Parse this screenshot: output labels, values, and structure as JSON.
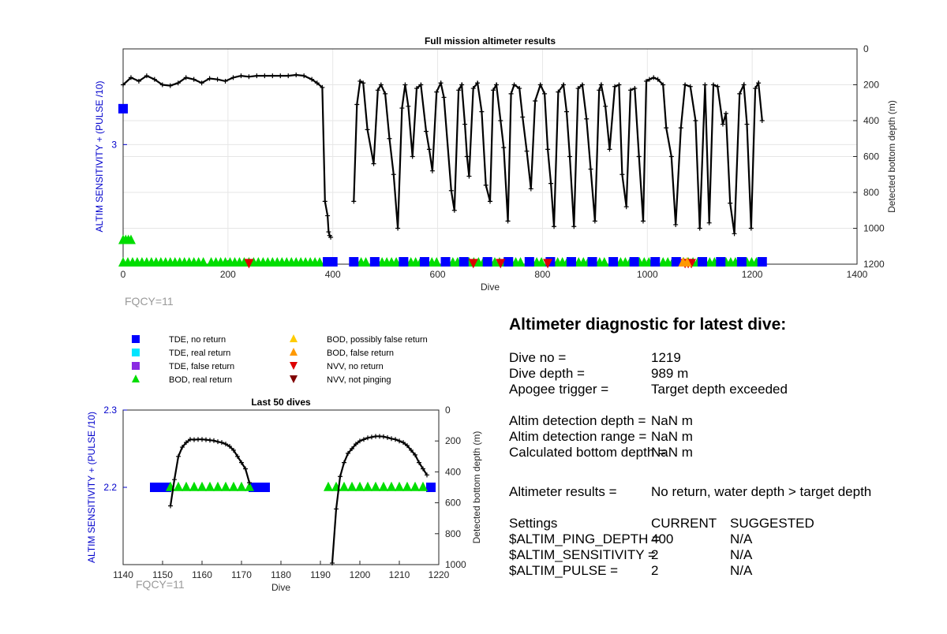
{
  "chart_data": [
    {
      "type": "scatter",
      "title": "Full mission altimeter results",
      "xlabel": "Dive",
      "ylabel_left": "ALTIM SENSITIVITY + (PULSE /10)",
      "ylabel_right": "Detected bottom depth (m)",
      "xlim": [
        0,
        1400
      ],
      "xticks": [
        "0",
        "200",
        "400",
        "600",
        "800",
        "1000",
        "1200",
        "1400"
      ],
      "ylim_left": [
        2.0,
        3.8
      ],
      "yticks_left": [
        "3"
      ],
      "ylim_right_reversed": [
        0,
        1200
      ],
      "yticks_right": [
        "0",
        "200",
        "400",
        "600",
        "800",
        "1000",
        "1200"
      ],
      "grid": true,
      "annotation": "FQCY=11",
      "bottom_depth_series": {
        "name": "Detected bottom depth",
        "x": [
          0,
          15,
          30,
          45,
          60,
          75,
          90,
          105,
          120,
          135,
          150,
          165,
          180,
          195,
          210,
          225,
          240,
          255,
          270,
          285,
          300,
          315,
          330,
          345,
          360,
          370,
          380,
          385,
          390,
          392,
          394,
          396,
          440,
          446,
          452,
          458,
          466,
          478,
          486,
          492,
          500,
          508,
          516,
          524,
          532,
          538,
          544,
          552,
          560,
          568,
          578,
          584,
          590,
          598,
          606,
          612,
          626,
          632,
          640,
          646,
          652,
          656,
          660,
          668,
          676,
          684,
          692,
          700,
          706,
          712,
          720,
          726,
          734,
          740,
          746,
          756,
          762,
          770,
          778,
          786,
          796,
          804,
          810,
          816,
          822,
          830,
          840,
          846,
          852,
          860,
          868,
          876,
          884,
          892,
          900,
          908,
          912,
          920,
          928,
          938,
          946,
          952,
          960,
          968,
          976,
          984,
          992,
          998,
          1004,
          1012,
          1020,
          1030,
          1036,
          1046,
          1054,
          1064,
          1072,
          1082,
          1092,
          1100,
          1110,
          1118,
          1126,
          1134,
          1144,
          1150,
          1158,
          1166,
          1176,
          1184,
          1190,
          1198,
          1206,
          1212,
          1219
        ],
        "y": [
          200,
          160,
          180,
          150,
          170,
          200,
          205,
          190,
          160,
          170,
          190,
          165,
          170,
          180,
          160,
          150,
          155,
          150,
          150,
          150,
          150,
          150,
          145,
          150,
          170,
          190,
          215,
          850,
          930,
          1020,
          1040,
          1050,
          850,
          310,
          180,
          190,
          450,
          640,
          230,
          200,
          250,
          500,
          700,
          1000,
          330,
          200,
          320,
          600,
          220,
          200,
          460,
          560,
          680,
          240,
          190,
          270,
          790,
          900,
          230,
          200,
          420,
          600,
          710,
          220,
          190,
          350,
          760,
          850,
          230,
          200,
          400,
          550,
          960,
          250,
          200,
          220,
          380,
          570,
          780,
          290,
          200,
          250,
          560,
          750,
          990,
          240,
          200,
          350,
          600,
          990,
          220,
          200,
          390,
          670,
          960,
          230,
          200,
          320,
          560,
          210,
          200,
          700,
          880,
          230,
          220,
          600,
          960,
          180,
          170,
          160,
          170,
          200,
          440,
          600,
          980,
          440,
          200,
          210,
          400,
          1000,
          200,
          970,
          200,
          210,
          420,
          360,
          860,
          1030,
          250,
          200,
          420,
          1000,
          220,
          190,
          400
        ],
        "color": "#000000"
      },
      "markers": [
        {
          "symbol": "square",
          "color": "#0000ff",
          "x": [
            0
          ],
          "y": [
            3.3
          ]
        },
        {
          "symbol": "triangle-up",
          "color": "#00dd00",
          "x": [
            0,
            5,
            10,
            15
          ],
          "y": [
            2.2,
            2.2,
            2.2,
            2.2
          ]
        },
        {
          "symbol": "triangle-up",
          "color": "#00dd00",
          "band_y": 2.0,
          "ranges": [
            [
              0,
              160
            ],
            [
              168,
              380
            ],
            [
              445,
              470
            ],
            [
              485,
              530
            ],
            [
              540,
              570
            ],
            [
              580,
              605
            ],
            [
              620,
              640
            ],
            [
              660,
              690
            ],
            [
              700,
              730
            ],
            [
              740,
              760
            ],
            [
              780,
              800
            ],
            [
              820,
              850
            ],
            [
              860,
              890
            ],
            [
              900,
              920
            ],
            [
              940,
              970
            ],
            [
              985,
              1010
            ],
            [
              1030,
              1050
            ],
            [
              1060,
              1100
            ],
            [
              1110,
              1130
            ],
            [
              1150,
              1170
            ],
            [
              1190,
              1215
            ]
          ]
        },
        {
          "symbol": "square",
          "color": "#0000ff",
          "band_y": 2.0,
          "x": [
            390,
            400,
            440,
            480,
            535,
            575,
            615,
            650,
            695,
            735,
            775,
            815,
            855,
            895,
            935,
            975,
            1015,
            1055,
            1105,
            1140,
            1180,
            1219
          ]
        },
        {
          "symbol": "triangle-down",
          "color": "#dd0000",
          "band_y": 2.0,
          "x": [
            240,
            668,
            720,
            810,
            1072,
            1078,
            1084
          ]
        },
        {
          "symbol": "triangle-up",
          "color": "#ff9900",
          "band_y": 2.0,
          "x": [
            1068,
            1076
          ]
        }
      ]
    },
    {
      "type": "scatter",
      "title": "Last 50 dives",
      "xlabel": "Dive",
      "ylabel_left": "ALTIM SENSITIVITY + (PULSE /10)",
      "ylabel_right": "Detected bottom depth (m)",
      "xlim": [
        1140,
        1220
      ],
      "xticks": [
        "1140",
        "1150",
        "1160",
        "1170",
        "1180",
        "1190",
        "1200",
        "1210",
        "1220"
      ],
      "ylim_left": [
        2.1,
        2.3
      ],
      "yticks_left": [
        "2.2",
        "2.3"
      ],
      "ylim_right_reversed": [
        0,
        1000
      ],
      "yticks_right": [
        "0",
        "200",
        "400",
        "600",
        "800",
        "1000"
      ],
      "annotation": "FQCY=11",
      "bottom_depth_series": {
        "name": "Detected bottom depth",
        "x": [
          1152,
          1153,
          1154,
          1155,
          1156,
          1157,
          1158,
          1159,
          1160,
          1161,
          1162,
          1163,
          1164,
          1165,
          1166,
          1167,
          1168,
          1169,
          1170,
          1171,
          1172,
          1193,
          1194,
          1195,
          1196,
          1197,
          1198,
          1199,
          1200,
          1201,
          1202,
          1203,
          1204,
          1205,
          1206,
          1207,
          1208,
          1209,
          1210,
          1211,
          1212,
          1213,
          1214,
          1215,
          1216,
          1217
        ],
        "y": [
          620,
          450,
          300,
          240,
          210,
          190,
          192,
          190,
          190,
          192,
          195,
          198,
          205,
          210,
          220,
          235,
          260,
          300,
          340,
          380,
          470,
          990,
          640,
          430,
          340,
          280,
          250,
          220,
          200,
          190,
          180,
          175,
          170,
          170,
          172,
          178,
          185,
          190,
          200,
          210,
          230,
          260,
          290,
          340,
          380,
          420
        ],
        "color": "#000000"
      },
      "markers": [
        {
          "symbol": "square",
          "color": "#0000ff",
          "x": [
            1148,
            1149,
            1150,
            1151,
            1173,
            1174,
            1175,
            1176,
            1218
          ],
          "y": [
            2.2,
            2.2,
            2.2,
            2.2,
            2.2,
            2.2,
            2.2,
            2.2,
            2.2
          ]
        },
        {
          "symbol": "triangle-up",
          "color": "#00dd00",
          "x": [
            1152,
            1154,
            1156,
            1158,
            1160,
            1162,
            1164,
            1166,
            1168,
            1170,
            1172,
            1192,
            1194,
            1196,
            1198,
            1200,
            1202,
            1204,
            1206,
            1208,
            1210,
            1212,
            1214,
            1216
          ],
          "y": [
            2.2,
            2.2,
            2.2,
            2.2,
            2.2,
            2.2,
            2.2,
            2.2,
            2.2,
            2.2,
            2.2,
            2.2,
            2.2,
            2.2,
            2.2,
            2.2,
            2.2,
            2.2,
            2.2,
            2.2,
            2.2,
            2.2,
            2.2,
            2.2
          ]
        }
      ]
    }
  ],
  "legend": [
    {
      "label": "TDE, no return",
      "symbol": "square",
      "color": "#0000ff"
    },
    {
      "label": "TDE, real return",
      "symbol": "square",
      "color": "#00e5ff"
    },
    {
      "label": "TDE, false return",
      "symbol": "square",
      "color": "#8a2be2"
    },
    {
      "label": "BOD, real return",
      "symbol": "triangle-up",
      "color": "#00dd00"
    },
    {
      "label": "BOD, possibly false return",
      "symbol": "triangle-up",
      "color": "#ffcc00"
    },
    {
      "label": "BOD, false return",
      "symbol": "triangle-up",
      "color": "#ff9900"
    },
    {
      "label": "NVV, no return",
      "symbol": "triangle-down",
      "color": "#dd0000"
    },
    {
      "label": "NVV, not pinging",
      "symbol": "triangle-down",
      "color": "#800000"
    }
  ],
  "diagnostic": {
    "title": "Altimeter diagnostic for latest dive:",
    "dive_no_label": "Dive no =",
    "dive_no_value": "1219",
    "dive_depth_label": "Dive depth =",
    "dive_depth_value": "989 m",
    "apogee_label": "Apogee trigger =",
    "apogee_value": "Target depth exceeded",
    "det_depth_label": "Altim detection depth =",
    "det_depth_value": "NaN m",
    "det_range_label": "Altim detection range =",
    "det_range_value": "NaN m",
    "calc_bottom_label": "Calculated bottom depth =",
    "calc_bottom_value": "NaN m",
    "results_label": "Altimeter results =",
    "results_value": "No return, water depth > target depth",
    "settings_label": "Settings",
    "current_label": "CURRENT",
    "suggested_label": "SUGGESTED",
    "ping_depth_label": "$ALTIM_PING_DEPTH =",
    "ping_depth_current": "400",
    "ping_depth_suggested": "N/A",
    "sensitivity_label": "$ALTIM_SENSITIVITY =",
    "sensitivity_current": "2",
    "sensitivity_suggested": "N/A",
    "pulse_label": "$ALTIM_PULSE =",
    "pulse_current": "2",
    "pulse_suggested": "N/A"
  },
  "colors": {
    "left_axis": "#0000cc",
    "annotation": "#999999",
    "grid": "#e6e6e6"
  }
}
